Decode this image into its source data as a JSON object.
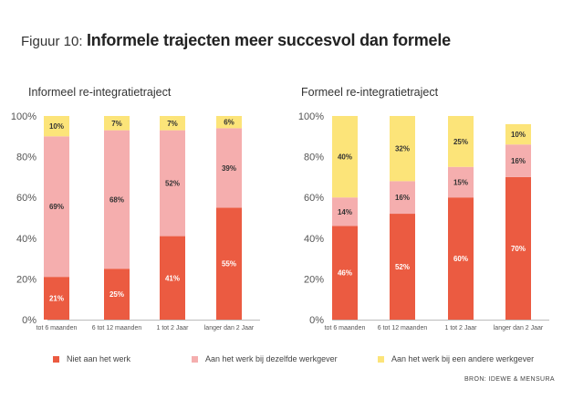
{
  "figure": {
    "prefix": "Figuur 10:",
    "title": "Informele trajecten meer succesvol dan formele",
    "source": "BRON: IDEWE & MENSURA"
  },
  "colors": {
    "niet": "#EB5B41",
    "zelfde": "#F5AEAE",
    "andere": "#FCE479"
  },
  "legend": [
    {
      "label": "Niet aan het werk",
      "color": "#EB5B41"
    },
    {
      "label": "Aan het werk bij dezelfde werkgever",
      "color": "#F5AEAE"
    },
    {
      "label": "Aan het werk bij een andere werkgever",
      "color": "#FCE479"
    }
  ],
  "chart_data": [
    {
      "type": "bar",
      "stacked": true,
      "title": "Informeel re-integratietraject",
      "categories": [
        "tot 6 maanden",
        "6 tot 12 maanden",
        "1 tot 2 Jaar",
        "langer dan 2 Jaar"
      ],
      "series": [
        {
          "name": "Niet aan het werk",
          "values": [
            21,
            25,
            41,
            55
          ]
        },
        {
          "name": "Aan het werk bij dezelfde werkgever",
          "values": [
            69,
            68,
            52,
            39
          ]
        },
        {
          "name": "Aan het werk bij een andere werkgever",
          "values": [
            10,
            7,
            7,
            6
          ]
        }
      ],
      "ylim": [
        0,
        100
      ],
      "yticks": [
        "0%",
        "20%",
        "40%",
        "60%",
        "80%",
        "100%"
      ]
    },
    {
      "type": "bar",
      "stacked": true,
      "title": "Formeel re-integratietraject",
      "categories": [
        "tot 6 maanden",
        "6 tot 12 maanden",
        "1 tot 2 Jaar",
        "langer dan 2 Jaar"
      ],
      "series": [
        {
          "name": "Niet aan het werk",
          "values": [
            46,
            52,
            60,
            70
          ]
        },
        {
          "name": "Aan het werk bij dezelfde werkgever",
          "values": [
            14,
            16,
            15,
            16
          ]
        },
        {
          "name": "Aan het werk bij een andere werkgever",
          "values": [
            40,
            32,
            25,
            10
          ]
        }
      ],
      "ylim": [
        0,
        100
      ],
      "yticks": [
        "0%",
        "20%",
        "40%",
        "60%",
        "80%",
        "100%"
      ]
    }
  ]
}
